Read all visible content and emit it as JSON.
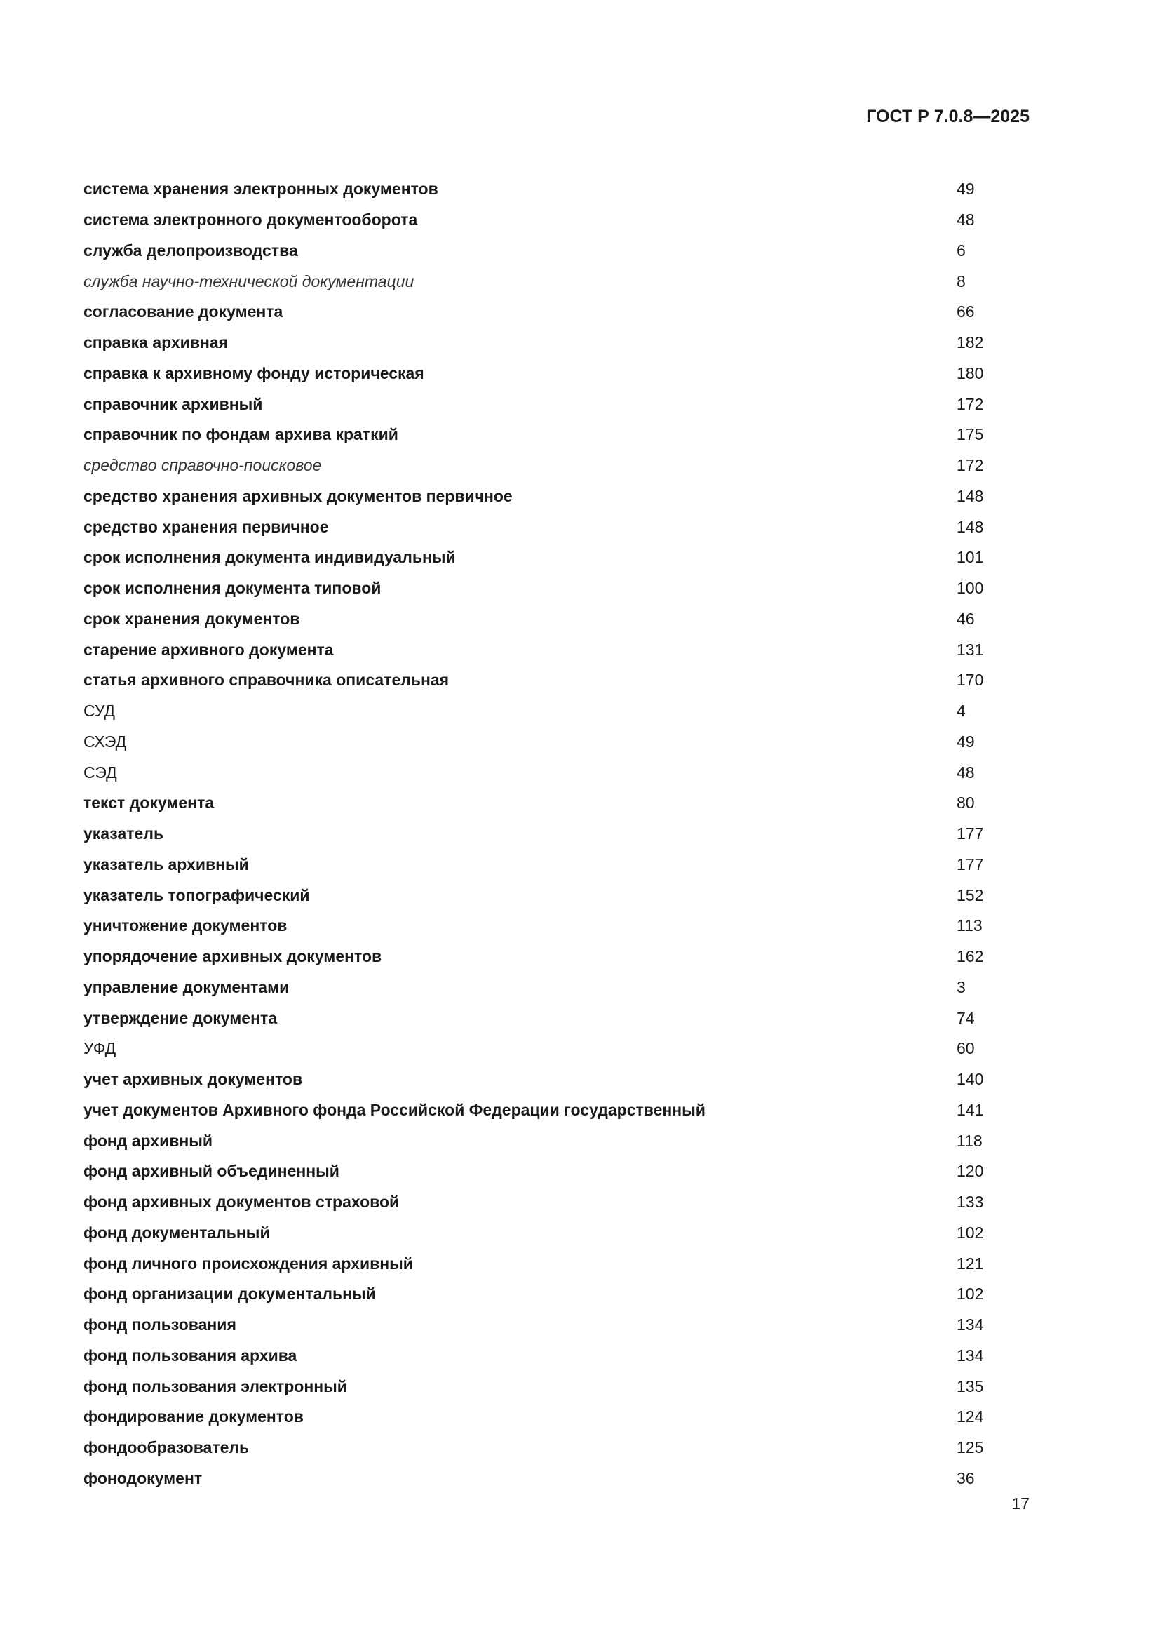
{
  "header": {
    "standard": "ГОСТ Р 7.0.8—2025"
  },
  "entries": [
    {
      "term": "система хранения электронных документов",
      "ref": "49",
      "style": "bold"
    },
    {
      "term": "система электронного документооборота",
      "ref": "48",
      "style": "bold"
    },
    {
      "term": "служба делопроизводства",
      "ref": "6",
      "style": "bold"
    },
    {
      "term": "служба научно-технической документации",
      "ref": "8",
      "style": "italic"
    },
    {
      "term": "согласование документа",
      "ref": "66",
      "style": "bold"
    },
    {
      "term": "справка архивная",
      "ref": "182",
      "style": "bold"
    },
    {
      "term": "справка к архивному фонду историческая",
      "ref": "180",
      "style": "bold"
    },
    {
      "term": "справочник архивный",
      "ref": "172",
      "style": "bold"
    },
    {
      "term": "справочник по фондам архива краткий",
      "ref": "175",
      "style": "bold"
    },
    {
      "term": "средство справочно-поисковое",
      "ref": "172",
      "style": "italic"
    },
    {
      "term": "средство хранения архивных документов первичное",
      "ref": "148",
      "style": "bold"
    },
    {
      "term": "средство хранения первичное",
      "ref": "148",
      "style": "bold"
    },
    {
      "term": "срок исполнения документа индивидуальный",
      "ref": "101",
      "style": "bold"
    },
    {
      "term": "срок исполнения документа типовой",
      "ref": "100",
      "style": "bold"
    },
    {
      "term": "срок хранения документов",
      "ref": "46",
      "style": "bold"
    },
    {
      "term": "старение архивного документа",
      "ref": "131",
      "style": "bold"
    },
    {
      "term": "статья архивного справочника описательная",
      "ref": "170",
      "style": "bold"
    },
    {
      "term": "СУД",
      "ref": "4",
      "style": "plain"
    },
    {
      "term": "СХЭД",
      "ref": "49",
      "style": "plain"
    },
    {
      "term": "СЭД",
      "ref": "48",
      "style": "plain"
    },
    {
      "term": "текст документа",
      "ref": "80",
      "style": "bold"
    },
    {
      "term": "указатель",
      "ref": "177",
      "style": "bold"
    },
    {
      "term": "указатель архивный",
      "ref": "177",
      "style": "bold"
    },
    {
      "term": "указатель топографический",
      "ref": "152",
      "style": "bold"
    },
    {
      "term": "уничтожение документов",
      "ref": "113",
      "style": "bold"
    },
    {
      "term": "упорядочение архивных документов",
      "ref": "162",
      "style": "bold"
    },
    {
      "term": "управление документами",
      "ref": "3",
      "style": "bold"
    },
    {
      "term": "утверждение документа",
      "ref": "74",
      "style": "bold"
    },
    {
      "term": "УФД",
      "ref": "60",
      "style": "plain"
    },
    {
      "term": "учет архивных документов",
      "ref": "140",
      "style": "bold"
    },
    {
      "term": "учет документов Архивного фонда Российской Федерации государственный",
      "ref": "141",
      "style": "bold"
    },
    {
      "term": "фонд архивный",
      "ref": "118",
      "style": "bold"
    },
    {
      "term": "фонд архивный объединенный",
      "ref": "120",
      "style": "bold"
    },
    {
      "term": "фонд архивных документов страховой",
      "ref": "133",
      "style": "bold"
    },
    {
      "term": "фонд документальный",
      "ref": "102",
      "style": "bold"
    },
    {
      "term": "фонд личного происхождения архивный",
      "ref": "121",
      "style": "bold"
    },
    {
      "term": "фонд организации документальный",
      "ref": "102",
      "style": "bold"
    },
    {
      "term": "фонд пользования",
      "ref": "134",
      "style": "bold"
    },
    {
      "term": "фонд пользования архива",
      "ref": "134",
      "style": "bold"
    },
    {
      "term": "фонд пользования электронный",
      "ref": "135",
      "style": "bold"
    },
    {
      "term": "фондирование документов",
      "ref": "124",
      "style": "bold"
    },
    {
      "term": "фондообразователь",
      "ref": "125",
      "style": "bold"
    },
    {
      "term": "фонодокумент",
      "ref": "36",
      "style": "bold"
    }
  ],
  "footer": {
    "page_number": "17"
  }
}
